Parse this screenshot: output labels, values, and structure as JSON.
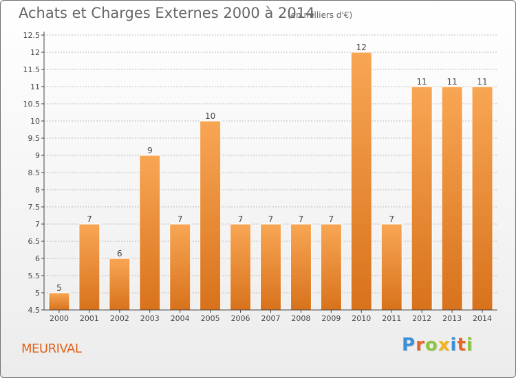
{
  "header": {
    "title": "Achats et Charges Externes 2000 à 2014",
    "subtitle": "(en milliers d'€)"
  },
  "footer": {
    "place": "MEURIVAL",
    "logo_text": "Proxiti",
    "logo_colors": [
      "#3d8fd6",
      "#e8632a",
      "#8cc63f",
      "#f3b41b",
      "#3d8fd6",
      "#e8632a",
      "#8cc63f"
    ]
  },
  "colors": {
    "bar_top": "#f8a654",
    "bar_bottom": "#d8721c",
    "axis": "#444444",
    "grid": "#bbbbbb",
    "text": "#444444"
  },
  "chart_data": {
    "type": "bar",
    "categories": [
      "2000",
      "2001",
      "2002",
      "2003",
      "2004",
      "2005",
      "2006",
      "2007",
      "2008",
      "2009",
      "2010",
      "2011",
      "2012",
      "2013",
      "2014"
    ],
    "values": [
      5,
      7,
      6,
      9,
      7,
      10,
      7,
      7,
      7,
      7,
      12,
      7,
      11,
      11,
      11
    ],
    "data_labels": [
      "5",
      "7",
      "6",
      "9",
      "7",
      "10",
      "7",
      "7",
      "7",
      "7",
      "12",
      "7",
      "11",
      "11",
      "11"
    ],
    "yticks": [
      "4.5",
      "5",
      "5.5",
      "6",
      "6.5",
      "7",
      "7.5",
      "8",
      "8.5",
      "9",
      "9.5",
      "10",
      "10.5",
      "11",
      "11.5",
      "12",
      "12.5"
    ],
    "ylim": [
      4.5,
      12.5
    ],
    "grid": "horizontal dashed",
    "xlabel": "",
    "ylabel": ""
  }
}
